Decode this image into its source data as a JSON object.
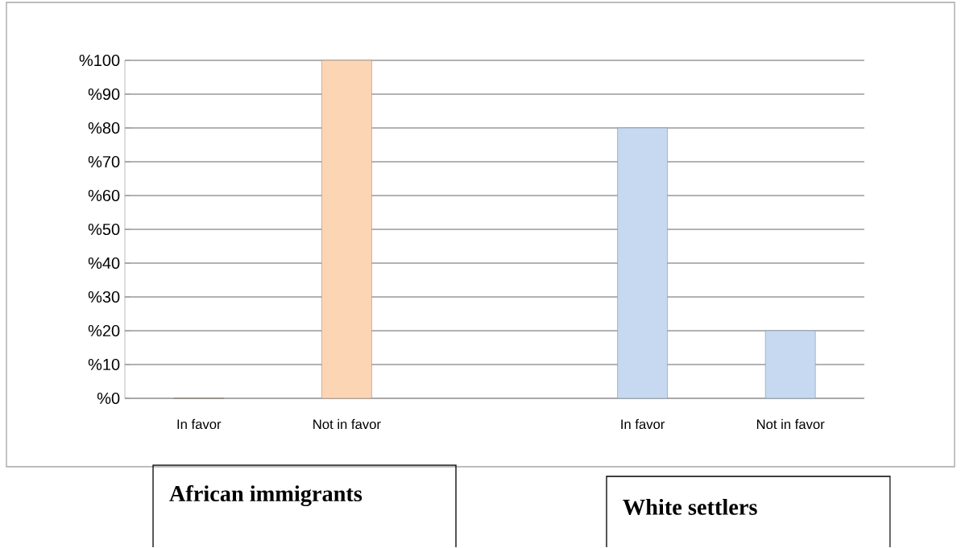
{
  "chart_data": {
    "type": "bar",
    "categories": [
      "In favor",
      "Not in favor",
      null,
      "In favor",
      "Not in favor"
    ],
    "values": [
      0,
      100,
      null,
      80,
      20
    ],
    "colors": [
      "#c4b5a4",
      "#fcd5b4",
      null,
      "#c6d9f1",
      "#c6d9f1"
    ],
    "ylim": [
      0,
      100
    ],
    "yticks": [
      {
        "value": 0,
        "label": "%0"
      },
      {
        "value": 10,
        "label": "%10"
      },
      {
        "value": 20,
        "label": "%20"
      },
      {
        "value": 30,
        "label": "%30"
      },
      {
        "value": 40,
        "label": "%40"
      },
      {
        "value": 50,
        "label": "%50"
      },
      {
        "value": 60,
        "label": "%60"
      },
      {
        "value": 70,
        "label": "%70"
      },
      {
        "value": 80,
        "label": "%80"
      },
      {
        "value": 90,
        "label": "%90"
      },
      {
        "value": 100,
        "label": "%100"
      }
    ],
    "grid": "y",
    "annotations": [
      "African immigrants",
      "White settlers"
    ]
  }
}
